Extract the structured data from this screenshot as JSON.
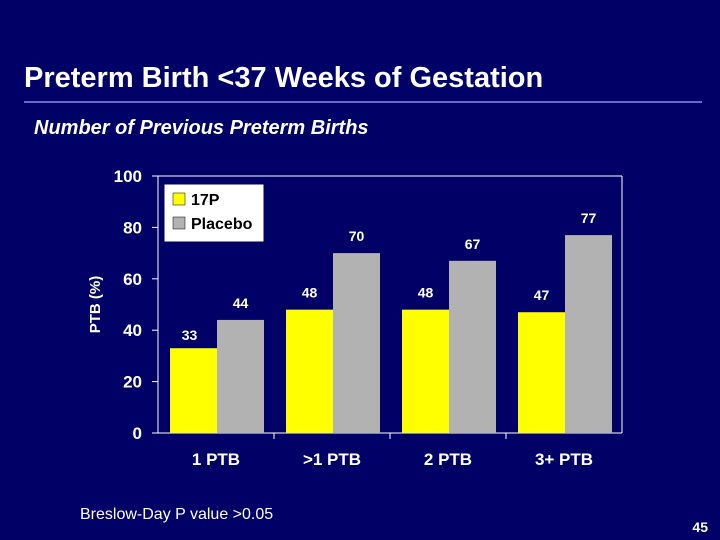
{
  "slide": {
    "title": "Preterm Birth <37 Weeks of Gestation",
    "subtitle": "Number of Previous Preterm Births",
    "footnote": "Breslow-Day P value >0.05",
    "page_number": "45"
  },
  "colors": {
    "background": "#000066",
    "rule": "#6666cc",
    "series_17p": "#ffff00",
    "series_placebo": "#b2b2b2"
  },
  "chart_data": {
    "type": "bar",
    "title": "",
    "xlabel": "",
    "ylabel": "PTB (%)",
    "ylim": [
      0,
      100
    ],
    "yticks": [
      0,
      20,
      40,
      60,
      80,
      100
    ],
    "grid": false,
    "legend": "top-left",
    "categories": [
      "1 PTB",
      ">1 PTB",
      "2 PTB",
      "3+ PTB"
    ],
    "series": [
      {
        "name": "17P",
        "color": "#ffff00",
        "values": [
          33,
          48,
          48,
          47
        ]
      },
      {
        "name": "Placebo",
        "color": "#b2b2b2",
        "values": [
          44,
          70,
          67,
          77
        ]
      }
    ]
  }
}
